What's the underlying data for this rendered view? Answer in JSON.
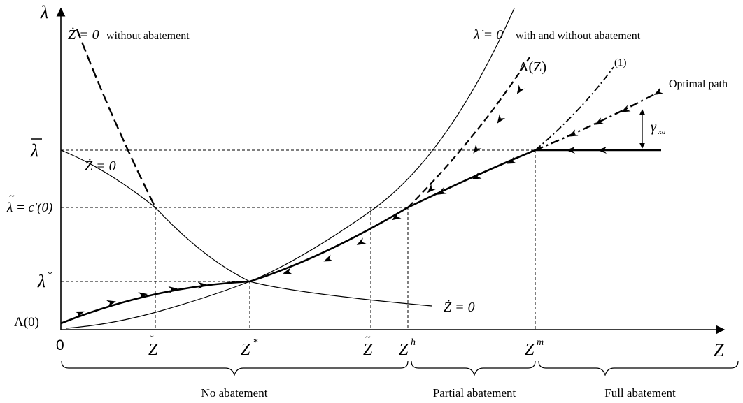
{
  "axes": {
    "y_label": "λ",
    "x_label": "Z",
    "origin": "0"
  },
  "y_ticks": {
    "lambda_bar": "λ",
    "lambda_tilde": "λ = c′(0)",
    "lambda_star": "λ",
    "lambda_star_sup": "*",
    "lambda_zero": "Λ(0)"
  },
  "x_ticks": {
    "z_breve": "Z",
    "z_star": "Z",
    "z_star_sup": "*",
    "z_tilde": "Z",
    "z_h": "Z",
    "z_h_sup": "h",
    "z_m": "Z",
    "z_m_sup": "m"
  },
  "curve_labels": {
    "zdot_without": "Ż = 0",
    "zdot_without_suffix": "without abatement",
    "lambdadot": "λ̇ = 0",
    "lambdadot_suffix": "with and without abatement",
    "capital_lambda": "Λ(Z)",
    "path_one": "(1)",
    "optimal_path": "Optimal path",
    "zdot_upper": "Ż = 0",
    "zdot_lower": "Ż = 0",
    "gamma_xa": "γ",
    "gamma_xa_sub": "xa"
  },
  "regions": {
    "no_abatement": "No abatement",
    "partial_abatement": "Partial abatement",
    "full_abatement": "Full abatement"
  }
}
